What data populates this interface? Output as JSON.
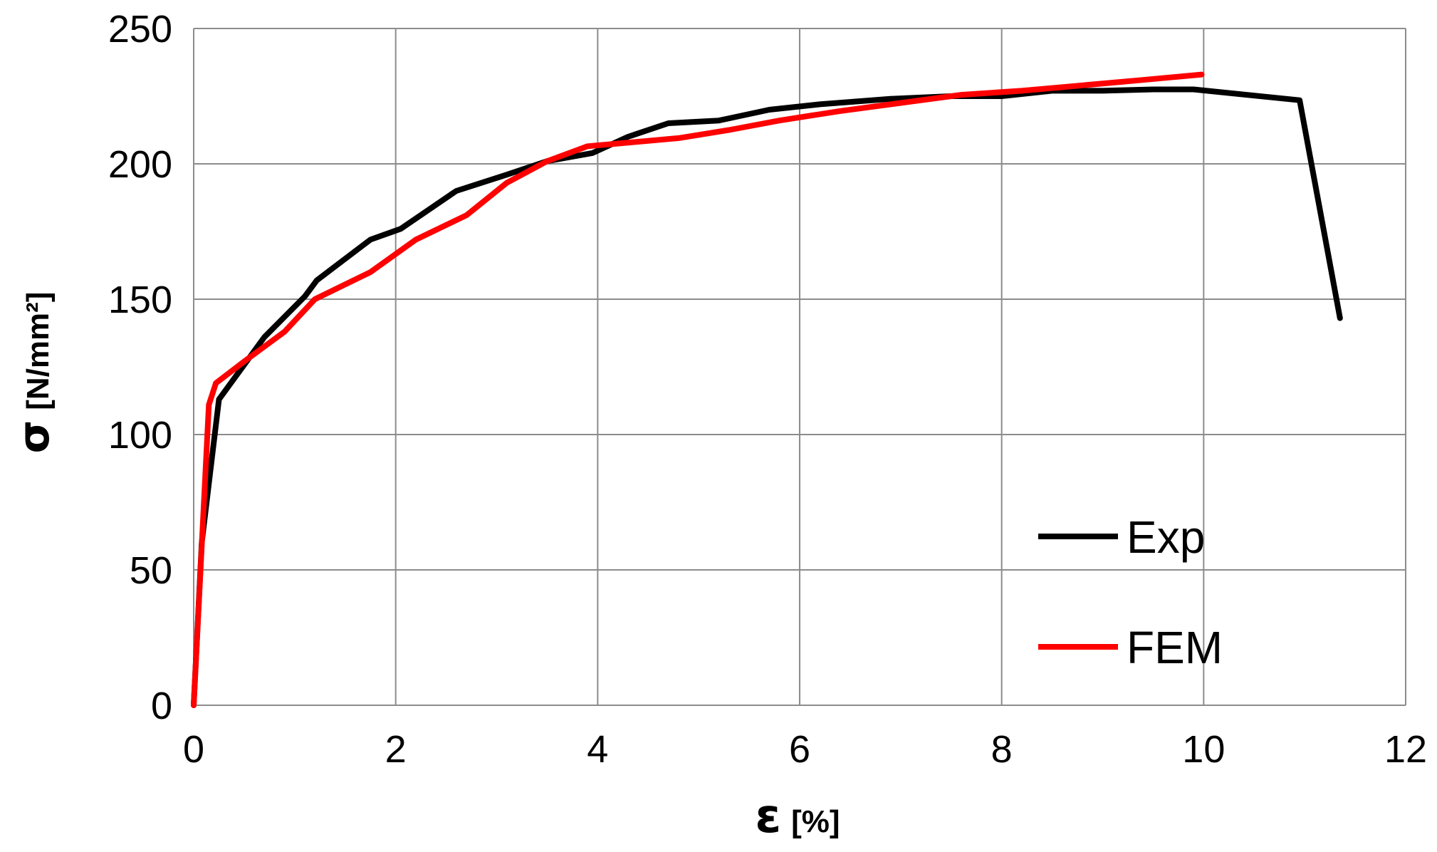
{
  "chart_data": {
    "type": "line",
    "title": "",
    "xlabel": {
      "symbol": "ε",
      "unit": "[%]"
    },
    "ylabel": {
      "symbol": "σ",
      "unit": "[N/mm²]"
    },
    "xlim": [
      0,
      12
    ],
    "ylim": [
      0,
      250
    ],
    "xticks": [
      "0",
      "2",
      "4",
      "6",
      "8",
      "10",
      "12"
    ],
    "yticks": [
      "0",
      "50",
      "100",
      "150",
      "200",
      "250"
    ],
    "grid": true,
    "legend_position": "bottom-right",
    "series": [
      {
        "name": "Exp",
        "color": "#000000",
        "x": [
          0,
          0.08,
          0.25,
          0.7,
          1.1,
          1.22,
          1.75,
          2.05,
          2.6,
          3.1,
          3.5,
          3.95,
          4.3,
          4.7,
          5.2,
          5.7,
          6.2,
          6.9,
          7.5,
          8.0,
          8.5,
          9.0,
          9.5,
          9.9,
          10.95,
          11.35
        ],
        "y": [
          0,
          60,
          113,
          136,
          151,
          157,
          172,
          176,
          190,
          196,
          201,
          204,
          210,
          215,
          216,
          220,
          222,
          224,
          225,
          225,
          227,
          227,
          227.5,
          227.5,
          223.5,
          143
        ]
      },
      {
        "name": "FEM",
        "color": "#ff0000",
        "x": [
          0,
          0.15,
          0.22,
          0.5,
          0.9,
          1.2,
          1.75,
          2.2,
          2.7,
          3.1,
          3.5,
          3.9,
          4.2,
          4.8,
          5.3,
          5.8,
          6.4,
          7.0,
          7.6,
          8.2,
          8.8,
          9.4,
          9.98
        ],
        "y": [
          0,
          111,
          119,
          127,
          138,
          150,
          160,
          172,
          181,
          193,
          201,
          206.5,
          207.5,
          209.5,
          212.5,
          216,
          219.5,
          222.5,
          225.5,
          227,
          229,
          231,
          233
        ]
      }
    ]
  }
}
